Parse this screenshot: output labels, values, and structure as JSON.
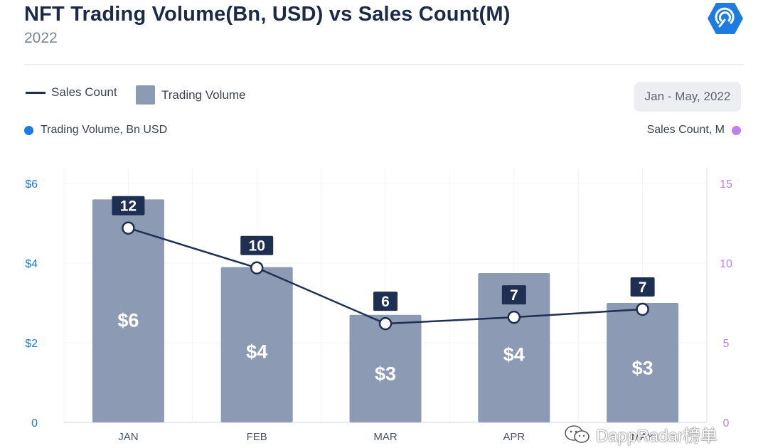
{
  "header": {
    "title": "NFT Trading Volume(Bn, USD) vs Sales Count(M)",
    "subtitle": "2022"
  },
  "legend": {
    "line_label": "Sales Count",
    "bar_label": "Trading Volume"
  },
  "range_button": {
    "label": "Jan - May, 2022"
  },
  "axis_keys": {
    "left": "Trading Volume, Bn USD",
    "right": "Sales Count, M"
  },
  "watermark": {
    "text": "DappRadar榜单"
  },
  "colors": {
    "bar": "#8d9ab3",
    "line": "#1f2f52",
    "left_axis": "#1e7be0",
    "right_axis": "#c17ef0",
    "label_box": "#1f2f52"
  },
  "chart_data": {
    "type": "bar",
    "categories": [
      "JAN",
      "FEB",
      "MAR",
      "APR",
      "MAY"
    ],
    "series": [
      {
        "name": "Trading Volume",
        "type": "bar",
        "axis": "left",
        "values": [
          5.6,
          3.9,
          2.7,
          3.75,
          3.0
        ],
        "labels": [
          "$6",
          "$4",
          "$3",
          "$4",
          "$3"
        ]
      },
      {
        "name": "Sales Count",
        "type": "line",
        "axis": "right",
        "values": [
          12.2,
          9.7,
          6.2,
          6.6,
          7.1
        ],
        "labels": [
          "12",
          "10",
          "6",
          "7",
          "7"
        ]
      }
    ],
    "y_left": {
      "ylim": [
        0,
        6
      ],
      "ticks": [
        0,
        2,
        4,
        6
      ],
      "tick_labels": [
        "0",
        "$2",
        "$4",
        "$6"
      ]
    },
    "y_right": {
      "ylim": [
        0,
        15
      ],
      "ticks": [
        0,
        5,
        10,
        15
      ],
      "tick_labels": [
        "0",
        "5",
        "10",
        "15"
      ]
    },
    "grid": true
  }
}
